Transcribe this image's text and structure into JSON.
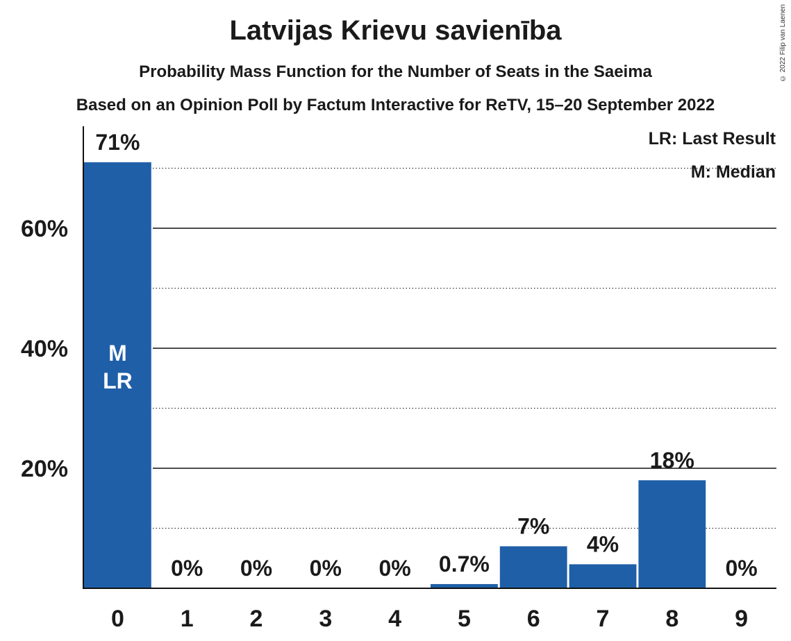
{
  "title": "Latvijas Krievu savienība",
  "subtitle": "Probability Mass Function for the Number of Seats in the Saeima",
  "subtitle2": "Based on an Opinion Poll by Factum Interactive for ReTV, 15–20 September 2022",
  "copyright": "© 2022 Filip van Laenen",
  "legend": {
    "last_result": "LR: Last Result",
    "median": "M: Median"
  },
  "colors": {
    "bar": "#1f5fa8",
    "text": "#1a1a1a"
  },
  "chart_data": {
    "type": "bar",
    "title": "Latvijas Krievu savienība",
    "xlabel": "",
    "ylabel": "",
    "categories": [
      "0",
      "1",
      "2",
      "3",
      "4",
      "5",
      "6",
      "7",
      "8",
      "9"
    ],
    "values": [
      71,
      0,
      0,
      0,
      0,
      0.7,
      7,
      4,
      18,
      0
    ],
    "value_labels": [
      "71%",
      "0%",
      "0%",
      "0%",
      "0%",
      "0.7%",
      "7%",
      "4%",
      "18%",
      "0%"
    ],
    "ylim": [
      0,
      75
    ],
    "yticks": [
      20,
      40,
      60
    ],
    "ytick_labels": [
      "20%",
      "40%",
      "60%"
    ],
    "minor_gridlines": [
      10,
      30,
      50,
      70
    ],
    "bar_annotations": {
      "0": [
        "M",
        "LR"
      ]
    },
    "grid": true,
    "legend_position": "top-right"
  }
}
